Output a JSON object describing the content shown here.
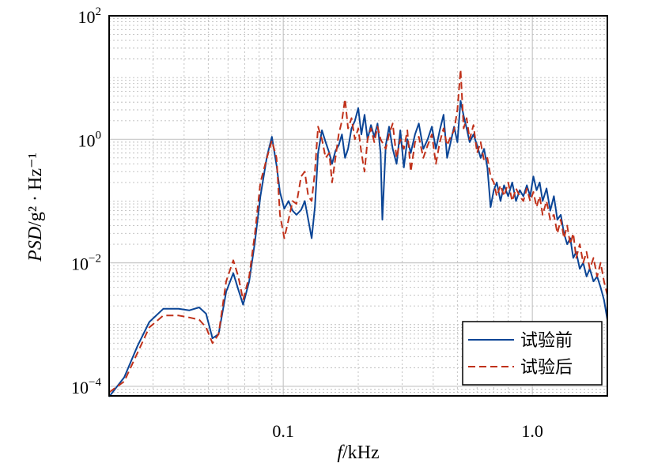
{
  "chart_data": {
    "type": "line",
    "xlabel_italic": "f",
    "xlabel_unit": "/kHz",
    "ylabel_italic": "PSD",
    "ylabel_unit": "/g² · Hz⁻¹",
    "xscale": "log",
    "yscale": "log",
    "xlim": [
      0.02,
      2.0
    ],
    "ylim": [
      7e-05,
      100
    ],
    "x_ticks": [
      {
        "value": 0.1,
        "label": "0.1"
      },
      {
        "value": 1.0,
        "label": "1.0"
      }
    ],
    "y_ticks": [
      {
        "value": 0.0001,
        "base": "10",
        "exp": "−4"
      },
      {
        "value": 0.01,
        "base": "10",
        "exp": "−2"
      },
      {
        "value": 1,
        "base": "10",
        "exp": "0"
      },
      {
        "value": 100,
        "base": "10",
        "exp": "2"
      }
    ],
    "grid": true,
    "legend_position": "bottom-right",
    "series": [
      {
        "name": "试验前",
        "color": "#0b4596",
        "dash": "solid",
        "points": [
          [
            0.02,
            6.8e-05
          ],
          [
            0.023,
            0.00014
          ],
          [
            0.026,
            0.00045
          ],
          [
            0.029,
            0.0011
          ],
          [
            0.033,
            0.0018
          ],
          [
            0.038,
            0.0018
          ],
          [
            0.042,
            0.0017
          ],
          [
            0.046,
            0.0019
          ],
          [
            0.049,
            0.0015
          ],
          [
            0.052,
            0.0006
          ],
          [
            0.055,
            0.0007
          ],
          [
            0.059,
            0.0034
          ],
          [
            0.063,
            0.0068
          ],
          [
            0.066,
            0.0037
          ],
          [
            0.069,
            0.0021
          ],
          [
            0.073,
            0.005
          ],
          [
            0.077,
            0.022
          ],
          [
            0.081,
            0.12
          ],
          [
            0.086,
            0.52
          ],
          [
            0.09,
            1.1
          ],
          [
            0.094,
            0.38
          ],
          [
            0.097,
            0.14
          ],
          [
            0.101,
            0.075
          ],
          [
            0.105,
            0.1
          ],
          [
            0.109,
            0.07
          ],
          [
            0.113,
            0.06
          ],
          [
            0.118,
            0.072
          ],
          [
            0.122,
            0.1
          ],
          [
            0.126,
            0.05
          ],
          [
            0.13,
            0.025
          ],
          [
            0.134,
            0.08
          ],
          [
            0.138,
            0.6
          ],
          [
            0.143,
            1.4
          ],
          [
            0.148,
            0.9
          ],
          [
            0.153,
            0.6
          ],
          [
            0.157,
            0.4
          ],
          [
            0.162,
            0.65
          ],
          [
            0.167,
            0.8
          ],
          [
            0.172,
            1.2
          ],
          [
            0.177,
            0.5
          ],
          [
            0.182,
            0.7
          ],
          [
            0.188,
            1.5
          ],
          [
            0.194,
            2.0
          ],
          [
            0.2,
            3.2
          ],
          [
            0.206,
            1.2
          ],
          [
            0.212,
            2.5
          ],
          [
            0.218,
            1.0
          ],
          [
            0.225,
            1.7
          ],
          [
            0.232,
            1.1
          ],
          [
            0.239,
            1.8
          ],
          [
            0.246,
            0.6
          ],
          [
            0.25,
            0.05
          ],
          [
            0.258,
            0.8
          ],
          [
            0.266,
            1.6
          ],
          [
            0.275,
            0.7
          ],
          [
            0.285,
            0.4
          ],
          [
            0.295,
            1.4
          ],
          [
            0.305,
            0.35
          ],
          [
            0.315,
            1.0
          ],
          [
            0.325,
            0.6
          ],
          [
            0.338,
            1.2
          ],
          [
            0.35,
            1.8
          ],
          [
            0.365,
            0.7
          ],
          [
            0.38,
            1.0
          ],
          [
            0.395,
            1.6
          ],
          [
            0.41,
            0.7
          ],
          [
            0.425,
            1.4
          ],
          [
            0.44,
            2.5
          ],
          [
            0.455,
            0.5
          ],
          [
            0.47,
            0.9
          ],
          [
            0.485,
            1.6
          ],
          [
            0.5,
            0.9
          ],
          [
            0.515,
            4.2
          ],
          [
            0.53,
            2.4
          ],
          [
            0.545,
            1.5
          ],
          [
            0.56,
            0.9
          ],
          [
            0.58,
            1.2
          ],
          [
            0.6,
            0.8
          ],
          [
            0.62,
            0.5
          ],
          [
            0.64,
            0.7
          ],
          [
            0.66,
            0.35
          ],
          [
            0.68,
            0.08
          ],
          [
            0.7,
            0.15
          ],
          [
            0.72,
            0.2
          ],
          [
            0.745,
            0.1
          ],
          [
            0.77,
            0.18
          ],
          [
            0.8,
            0.12
          ],
          [
            0.83,
            0.2
          ],
          [
            0.86,
            0.1
          ],
          [
            0.89,
            0.15
          ],
          [
            0.92,
            0.12
          ],
          [
            0.95,
            0.18
          ],
          [
            0.98,
            0.12
          ],
          [
            1.01,
            0.25
          ],
          [
            1.04,
            0.15
          ],
          [
            1.07,
            0.2
          ],
          [
            1.1,
            0.1
          ],
          [
            1.14,
            0.16
          ],
          [
            1.18,
            0.07
          ],
          [
            1.22,
            0.12
          ],
          [
            1.26,
            0.05
          ],
          [
            1.3,
            0.06
          ],
          [
            1.34,
            0.03
          ],
          [
            1.38,
            0.02
          ],
          [
            1.42,
            0.025
          ],
          [
            1.46,
            0.012
          ],
          [
            1.5,
            0.015
          ],
          [
            1.55,
            0.008
          ],
          [
            1.6,
            0.01
          ],
          [
            1.65,
            0.006
          ],
          [
            1.7,
            0.008
          ],
          [
            1.76,
            0.005
          ],
          [
            1.82,
            0.006
          ],
          [
            1.88,
            0.004
          ],
          [
            1.94,
            0.0025
          ],
          [
            2.0,
            0.0012
          ]
        ]
      },
      {
        "name": "试验后",
        "color": "#c0311a",
        "dash": "dashed",
        "points": [
          [
            0.02,
            8e-05
          ],
          [
            0.023,
            0.00012
          ],
          [
            0.026,
            0.00035
          ],
          [
            0.029,
            0.0009
          ],
          [
            0.033,
            0.0014
          ],
          [
            0.038,
            0.0014
          ],
          [
            0.042,
            0.0013
          ],
          [
            0.046,
            0.0012
          ],
          [
            0.049,
            0.0009
          ],
          [
            0.052,
            0.0005
          ],
          [
            0.055,
            0.0007
          ],
          [
            0.059,
            0.005
          ],
          [
            0.063,
            0.011
          ],
          [
            0.066,
            0.006
          ],
          [
            0.069,
            0.0025
          ],
          [
            0.073,
            0.006
          ],
          [
            0.077,
            0.03
          ],
          [
            0.081,
            0.2
          ],
          [
            0.086,
            0.5
          ],
          [
            0.09,
            0.95
          ],
          [
            0.094,
            0.5
          ],
          [
            0.097,
            0.06
          ],
          [
            0.101,
            0.025
          ],
          [
            0.105,
            0.05
          ],
          [
            0.109,
            0.1
          ],
          [
            0.113,
            0.09
          ],
          [
            0.118,
            0.25
          ],
          [
            0.122,
            0.3
          ],
          [
            0.126,
            0.12
          ],
          [
            0.13,
            0.1
          ],
          [
            0.134,
            0.3
          ],
          [
            0.138,
            1.6
          ],
          [
            0.143,
            1.0
          ],
          [
            0.148,
            0.5
          ],
          [
            0.153,
            0.6
          ],
          [
            0.157,
            0.2
          ],
          [
            0.162,
            0.5
          ],
          [
            0.167,
            1.2
          ],
          [
            0.172,
            2.0
          ],
          [
            0.177,
            4.5
          ],
          [
            0.182,
            1.5
          ],
          [
            0.188,
            2.2
          ],
          [
            0.194,
            1.0
          ],
          [
            0.2,
            1.5
          ],
          [
            0.206,
            0.6
          ],
          [
            0.212,
            0.3
          ],
          [
            0.218,
            1.0
          ],
          [
            0.225,
            1.5
          ],
          [
            0.232,
            0.9
          ],
          [
            0.239,
            1.6
          ],
          [
            0.246,
            1.0
          ],
          [
            0.258,
            0.7
          ],
          [
            0.266,
            1.2
          ],
          [
            0.275,
            1.8
          ],
          [
            0.285,
            0.5
          ],
          [
            0.295,
            1.0
          ],
          [
            0.305,
            0.7
          ],
          [
            0.315,
            1.4
          ],
          [
            0.325,
            0.3
          ],
          [
            0.338,
            0.9
          ],
          [
            0.35,
            1.1
          ],
          [
            0.365,
            0.5
          ],
          [
            0.38,
            0.8
          ],
          [
            0.395,
            1.2
          ],
          [
            0.41,
            0.4
          ],
          [
            0.425,
            0.9
          ],
          [
            0.44,
            1.5
          ],
          [
            0.455,
            0.8
          ],
          [
            0.47,
            1.1
          ],
          [
            0.485,
            1.4
          ],
          [
            0.5,
            3.0
          ],
          [
            0.515,
            13.5
          ],
          [
            0.53,
            1.5
          ],
          [
            0.545,
            2.2
          ],
          [
            0.56,
            1.0
          ],
          [
            0.58,
            1.7
          ],
          [
            0.6,
            0.6
          ],
          [
            0.62,
            0.9
          ],
          [
            0.64,
            0.45
          ],
          [
            0.66,
            0.5
          ],
          [
            0.68,
            0.25
          ],
          [
            0.7,
            0.2
          ],
          [
            0.72,
            0.12
          ],
          [
            0.745,
            0.18
          ],
          [
            0.77,
            0.12
          ],
          [
            0.8,
            0.2
          ],
          [
            0.83,
            0.1
          ],
          [
            0.86,
            0.16
          ],
          [
            0.89,
            0.12
          ],
          [
            0.92,
            0.1
          ],
          [
            0.95,
            0.16
          ],
          [
            0.98,
            0.1
          ],
          [
            1.01,
            0.14
          ],
          [
            1.04,
            0.08
          ],
          [
            1.07,
            0.12
          ],
          [
            1.1,
            0.06
          ],
          [
            1.14,
            0.1
          ],
          [
            1.18,
            0.05
          ],
          [
            1.22,
            0.06
          ],
          [
            1.26,
            0.03
          ],
          [
            1.3,
            0.05
          ],
          [
            1.34,
            0.025
          ],
          [
            1.38,
            0.04
          ],
          [
            1.42,
            0.02
          ],
          [
            1.46,
            0.03
          ],
          [
            1.5,
            0.012
          ],
          [
            1.55,
            0.02
          ],
          [
            1.6,
            0.01
          ],
          [
            1.65,
            0.015
          ],
          [
            1.7,
            0.008
          ],
          [
            1.76,
            0.012
          ],
          [
            1.82,
            0.006
          ],
          [
            1.88,
            0.01
          ],
          [
            1.94,
            0.005
          ],
          [
            2.0,
            0.003
          ]
        ]
      }
    ]
  }
}
